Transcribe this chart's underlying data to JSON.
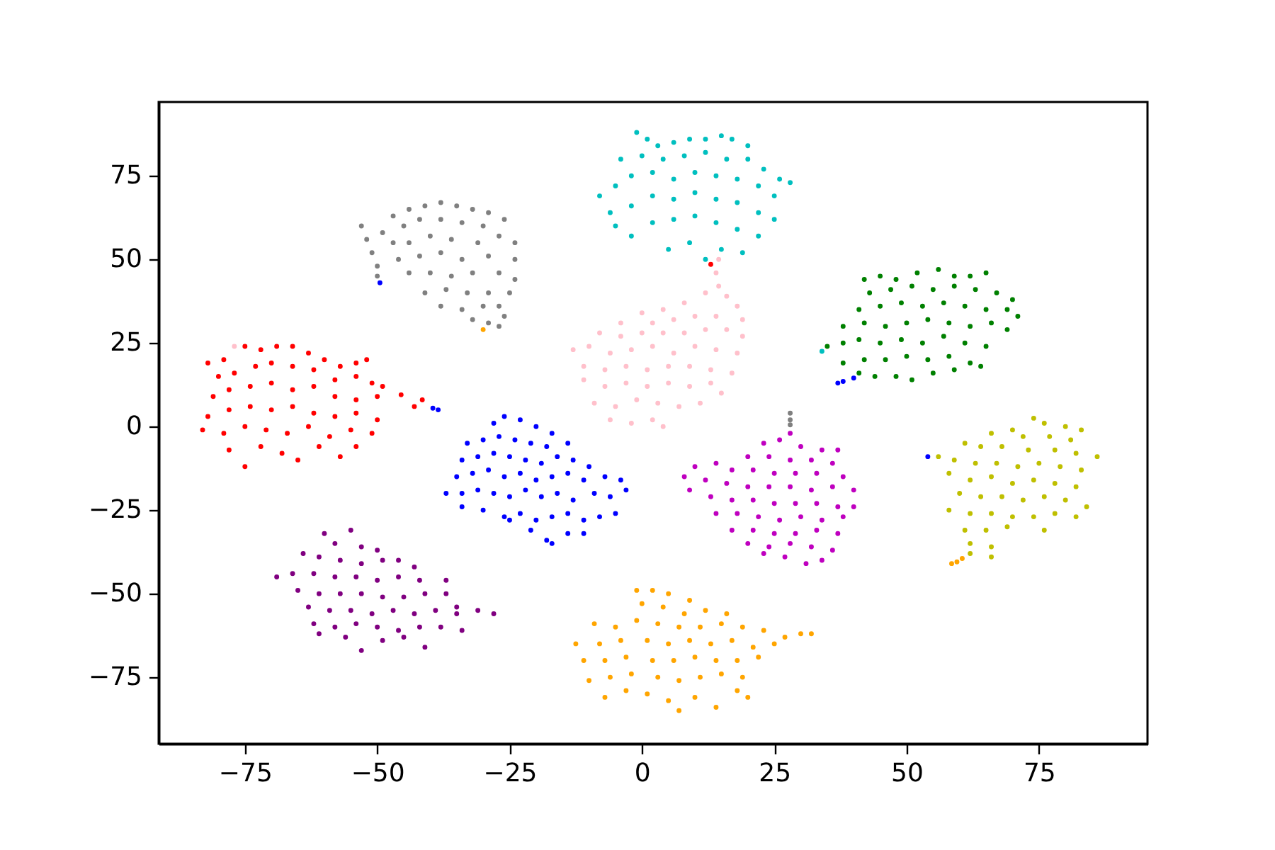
{
  "chart_data": {
    "type": "scatter",
    "marker": "circle",
    "grid": false,
    "xlim": [
      -91.3,
      95.5
    ],
    "ylim": [
      -94.9,
      97.1
    ],
    "xticks": [
      -75,
      -50,
      -25,
      0,
      25,
      50,
      75
    ],
    "yticks": [
      -75,
      -50,
      -25,
      0,
      25,
      50,
      75
    ],
    "series": [
      {
        "color": "#ff0000",
        "x": [
          -82,
          -79,
          -75,
          -72,
          -69,
          -66,
          -63,
          -60,
          -57,
          -54,
          -52,
          -80,
          -77,
          -73,
          -70,
          -66,
          -62,
          -58,
          -54,
          -51,
          -49,
          -81,
          -78,
          -74,
          -70,
          -66,
          -62,
          -58,
          -54,
          -50,
          -45.5,
          -41.5,
          -43,
          -82,
          -78,
          -74,
          -70,
          -66,
          -62,
          -58,
          -54,
          -50,
          -83,
          -79,
          -75,
          -71,
          -67,
          -63,
          -59,
          -55,
          -51,
          -78,
          -75,
          -72,
          -68,
          -65,
          -61,
          -57,
          -54,
          13
        ],
        "values": [
          19,
          20,
          24,
          23,
          24,
          24,
          22,
          20,
          18,
          19,
          20,
          15,
          16,
          18,
          19,
          18,
          17,
          14,
          15,
          13,
          12,
          9,
          11,
          12,
          13,
          11,
          12,
          9,
          8,
          9,
          9.5,
          8,
          6,
          3,
          5,
          6,
          5,
          6,
          4,
          3,
          4,
          2,
          -1,
          -2,
          0,
          -1,
          -2,
          0,
          -3,
          -1,
          -2,
          -7,
          -12,
          -6,
          -8,
          -10,
          -6,
          -9,
          -6,
          48.5
        ]
      },
      {
        "color": "#008000",
        "x": [
          42,
          45,
          48,
          52,
          56,
          59,
          62,
          65,
          43,
          47,
          51,
          55,
          59,
          63,
          67,
          70,
          41,
          45,
          49,
          53,
          57,
          61,
          65,
          69,
          71,
          38,
          42,
          46,
          50,
          54,
          58,
          62,
          66,
          69,
          35,
          38,
          41,
          45,
          49,
          53,
          57,
          61,
          65,
          38,
          42,
          46,
          50,
          54,
          58,
          62,
          64,
          41,
          44,
          48,
          51,
          55,
          59
        ],
        "values": [
          44,
          45,
          44,
          46,
          47,
          45,
          45,
          46,
          40,
          41,
          42,
          41,
          42,
          41,
          40,
          38,
          35,
          36,
          37,
          36,
          37,
          36,
          35,
          35,
          33,
          30,
          31,
          30,
          31,
          32,
          31,
          30,
          31,
          29,
          24,
          25,
          26,
          25,
          26,
          25,
          27,
          25,
          24,
          19,
          20,
          20,
          21,
          20,
          21,
          19,
          18,
          16,
          15,
          15,
          14,
          16,
          17
        ]
      },
      {
        "color": "#00bfbf",
        "x": [
          -1,
          1,
          3,
          6,
          9,
          12,
          15,
          17,
          20,
          -4,
          0,
          4,
          8,
          12,
          16,
          20,
          23,
          26,
          28,
          -8,
          -5,
          -2,
          2,
          6,
          10,
          14,
          18,
          22,
          25,
          -6,
          -2,
          2,
          6,
          10,
          14,
          18,
          22,
          25,
          -5,
          -2,
          2,
          6,
          10,
          14,
          18,
          22,
          5,
          9,
          12,
          15,
          19,
          34
        ],
        "values": [
          88,
          86,
          84,
          85,
          86,
          86,
          87,
          86,
          84,
          80,
          81,
          80,
          81,
          82,
          80,
          80,
          77,
          74,
          73,
          69,
          72,
          75,
          76,
          74,
          76,
          75,
          74,
          72,
          69,
          64,
          66,
          69,
          68,
          70,
          68,
          67,
          64,
          62,
          60,
          57,
          61,
          62,
          63,
          61,
          59,
          57,
          53,
          55,
          50,
          53,
          52,
          22.5
        ]
      },
      {
        "color": "#bf00bf",
        "x": [
          28,
          26,
          23,
          30,
          34,
          37,
          20,
          24,
          28,
          32,
          36,
          10,
          14,
          17,
          21,
          25,
          29,
          33,
          38,
          8,
          12,
          16,
          20,
          24,
          28,
          32,
          36,
          40,
          9,
          13,
          17,
          21,
          25,
          29,
          33,
          37,
          40,
          14,
          18,
          22,
          26,
          30,
          34,
          38,
          17,
          21,
          25,
          29,
          33,
          37,
          20,
          24,
          28,
          32,
          36,
          23,
          27,
          31,
          34
        ],
        "values": [
          -2,
          -4,
          -5,
          -6,
          -7,
          -7,
          -9,
          -9,
          -10,
          -10,
          -11,
          -12,
          -11,
          -13,
          -13,
          -14,
          -14,
          -14,
          -15,
          -15,
          -16,
          -17,
          -18,
          -18,
          -18,
          -19,
          -18,
          -19,
          -19,
          -21,
          -22,
          -22,
          -23,
          -23,
          -23,
          -24,
          -24,
          -26,
          -26,
          -27,
          -28,
          -27,
          -28,
          -27,
          -31,
          -31,
          -32,
          -32,
          -31,
          -32,
          -35,
          -36,
          -35,
          -36,
          -37,
          -38,
          -39,
          -41,
          -40
        ]
      },
      {
        "color": "#bfbf00",
        "x": [
          74,
          76,
          80,
          83,
          70,
          66,
          72,
          77,
          81,
          61,
          64,
          68,
          73,
          78,
          82,
          86,
          56,
          59,
          63,
          67,
          71,
          75,
          79,
          83,
          58,
          62,
          66,
          70,
          74,
          78,
          82,
          60,
          64,
          68,
          72,
          76,
          80,
          84,
          58,
          62,
          66,
          70,
          74,
          78,
          82,
          61,
          65,
          69,
          76,
          62,
          66,
          62,
          66
        ],
        "values": [
          2.5,
          1,
          0,
          -1,
          -1,
          -2,
          -3,
          -3,
          -4,
          -5,
          -6,
          -6,
          -7,
          -7,
          -8,
          -9,
          -9,
          -10,
          -11,
          -11,
          -12,
          -11,
          -12,
          -13,
          -14,
          -16,
          -15,
          -17,
          -16,
          -17,
          -18,
          -20,
          -21,
          -21,
          -22,
          -21,
          -22,
          -24,
          -25,
          -26,
          -26,
          -27,
          -27,
          -26,
          -27,
          -31,
          -31,
          -30,
          -31,
          -35,
          -36,
          -38,
          -39
        ]
      },
      {
        "color": "#800080",
        "x": [
          -55,
          -60,
          -58,
          -53,
          -50,
          -64,
          -61,
          -57,
          -53,
          -49,
          -46,
          -43,
          -69,
          -66,
          -62,
          -58,
          -54,
          -50,
          -46,
          -42,
          -37,
          -65,
          -61,
          -57,
          -53,
          -49,
          -45,
          -41,
          -37,
          -35,
          -63,
          -59,
          -55,
          -51,
          -47,
          -43,
          -39,
          -35,
          -31,
          -28,
          -62,
          -58,
          -54,
          -50,
          -46,
          -42,
          -38,
          -34,
          -61,
          -56,
          -53,
          -49,
          -45,
          -41
        ],
        "values": [
          -31,
          -32,
          -35,
          -36,
          -37,
          -38,
          -39,
          -40,
          -41,
          -40,
          -40,
          -42,
          -45,
          -44,
          -44,
          -45,
          -45,
          -46,
          -45,
          -46,
          -46,
          -49,
          -50,
          -50,
          -50,
          -51,
          -51,
          -50,
          -50,
          -54,
          -54,
          -55,
          -55,
          -56,
          -55,
          -56,
          -55,
          -56,
          -55,
          -56,
          -59,
          -60,
          -59,
          -60,
          -61,
          -60,
          -60,
          -61,
          -62,
          -63,
          -67,
          -64,
          -63,
          -66
        ]
      },
      {
        "color": "#ffc0cb",
        "x": [
          14.5,
          14,
          14.5,
          12,
          16,
          18,
          8,
          4,
          0,
          -4,
          2,
          6,
          10,
          14,
          19,
          -8,
          -4,
          0,
          4,
          8,
          12,
          16,
          19,
          -13,
          -10,
          -6,
          -2,
          2,
          6,
          10,
          14,
          18,
          -11,
          -7,
          -3,
          1,
          5,
          9,
          13,
          17,
          -11,
          -7,
          -3,
          1,
          5,
          9,
          13,
          15,
          -9,
          -5,
          -1,
          3,
          7,
          11,
          -6,
          -2,
          2,
          4,
          -77
        ],
        "values": [
          50,
          46,
          42,
          40,
          39,
          36,
          37,
          35,
          34,
          31,
          31,
          32,
          33,
          33,
          32,
          28,
          27,
          28,
          28,
          28,
          29,
          29,
          27,
          23,
          24,
          22,
          23,
          24,
          22,
          24,
          23,
          22,
          18,
          17,
          18,
          17,
          18,
          18,
          17,
          16,
          14,
          12,
          13,
          12,
          13,
          12,
          13,
          10,
          7,
          6,
          8,
          7,
          6,
          7,
          2,
          1,
          2,
          0,
          24
        ]
      },
      {
        "color": "#808080",
        "x": [
          -47,
          -44,
          -41,
          -38,
          -35,
          -32,
          -29,
          -26,
          -53,
          -52,
          -51,
          -50,
          -50,
          -49,
          -47,
          -45,
          -42,
          -38,
          -34,
          -30,
          -44,
          -40,
          -36,
          -31,
          -27,
          -24,
          -46,
          -42,
          -38,
          -34,
          -29,
          -24,
          -44,
          -40,
          -36,
          -32,
          -27,
          -24,
          -41,
          -37,
          -33,
          -29,
          -25,
          -38,
          -34,
          -30,
          -27,
          -32,
          -29,
          -26,
          -27,
          28,
          28,
          28
        ],
        "values": [
          63,
          65,
          66,
          67,
          66,
          65,
          64,
          62,
          60,
          56,
          52,
          48,
          45,
          58,
          55,
          60,
          62,
          62,
          61,
          60,
          55,
          57,
          56,
          55,
          57,
          55,
          50,
          51,
          52,
          50,
          51,
          50,
          46,
          46,
          45,
          46,
          46,
          44,
          40,
          41,
          40,
          40,
          40,
          36,
          35,
          36,
          36,
          32,
          31,
          33,
          30,
          4,
          2,
          0.5
        ]
      },
      {
        "color": "#ffa500",
        "x": [
          -1,
          2,
          5,
          9,
          0,
          4,
          8,
          12,
          16,
          -9,
          -5,
          -1,
          3,
          7,
          11,
          15,
          19,
          23,
          27,
          30,
          32,
          -12.5,
          -8,
          -4,
          1,
          5,
          9,
          13,
          17,
          21,
          25,
          -11,
          -7,
          -3,
          2,
          6,
          10,
          14,
          18,
          22,
          -10,
          -6,
          -2,
          3,
          7,
          11,
          15,
          19,
          -7,
          -3,
          1,
          5,
          7,
          10,
          14,
          18,
          20,
          -30,
          58.5,
          59.5,
          60.5
        ],
        "values": [
          -49,
          -49,
          -50,
          -52,
          -53,
          -54,
          -56,
          -55,
          -56,
          -59,
          -60,
          -58,
          -59,
          -60,
          -60,
          -59,
          -60,
          -61,
          -63,
          -62,
          -62,
          -65,
          -65,
          -64,
          -64,
          -65,
          -64,
          -65,
          -64,
          -66,
          -65,
          -70,
          -70,
          -69,
          -70,
          -70,
          -69,
          -70,
          -70,
          -69,
          -76,
          -75,
          -74,
          -75,
          -76,
          -75,
          -74,
          -75,
          -81,
          -79,
          -80,
          -82,
          -85,
          -81,
          -84,
          -79,
          -81,
          29,
          -41,
          -40.5,
          -39.5
        ]
      },
      {
        "color": "#0000ff",
        "x": [
          -28,
          -26,
          -23,
          -20,
          -17,
          -14,
          -33,
          -30,
          -27,
          -24,
          -21,
          -18,
          -34,
          -31,
          -28,
          -25,
          -22,
          -19,
          -16,
          -13,
          -10,
          -35,
          -32,
          -29,
          -26,
          -23,
          -20,
          -17,
          -14,
          -11,
          -7,
          -4,
          -37,
          -34,
          -31,
          -28,
          -25,
          -22,
          -19,
          -16,
          -13,
          -9,
          -6,
          -3,
          -34,
          -30,
          -26,
          -23,
          -20,
          -17,
          -14,
          -11,
          -8,
          -5,
          -25,
          -21,
          -18,
          -17,
          -14,
          -11,
          -49.5,
          -39.5,
          -38.5,
          37,
          38,
          40,
          54
        ],
        "values": [
          1,
          3,
          2,
          0,
          -2,
          -5,
          -5,
          -4,
          -3,
          -4,
          -5,
          -6,
          -10,
          -9,
          -8,
          -9,
          -10,
          -11,
          -9,
          -10,
          -12,
          -15,
          -14,
          -13,
          -15,
          -14,
          -16,
          -15,
          -14,
          -16,
          -15,
          -16,
          -20,
          -20,
          -19,
          -20,
          -21,
          -19,
          -21,
          -20,
          -22,
          -20,
          -21,
          -19,
          -24,
          -25,
          -27,
          -26,
          -28,
          -27,
          -26,
          -28,
          -27,
          -26,
          -28,
          -31,
          -34,
          -35,
          -32,
          -32,
          43,
          5.5,
          5,
          13,
          13.5,
          14.5,
          -9
        ]
      }
    ]
  }
}
